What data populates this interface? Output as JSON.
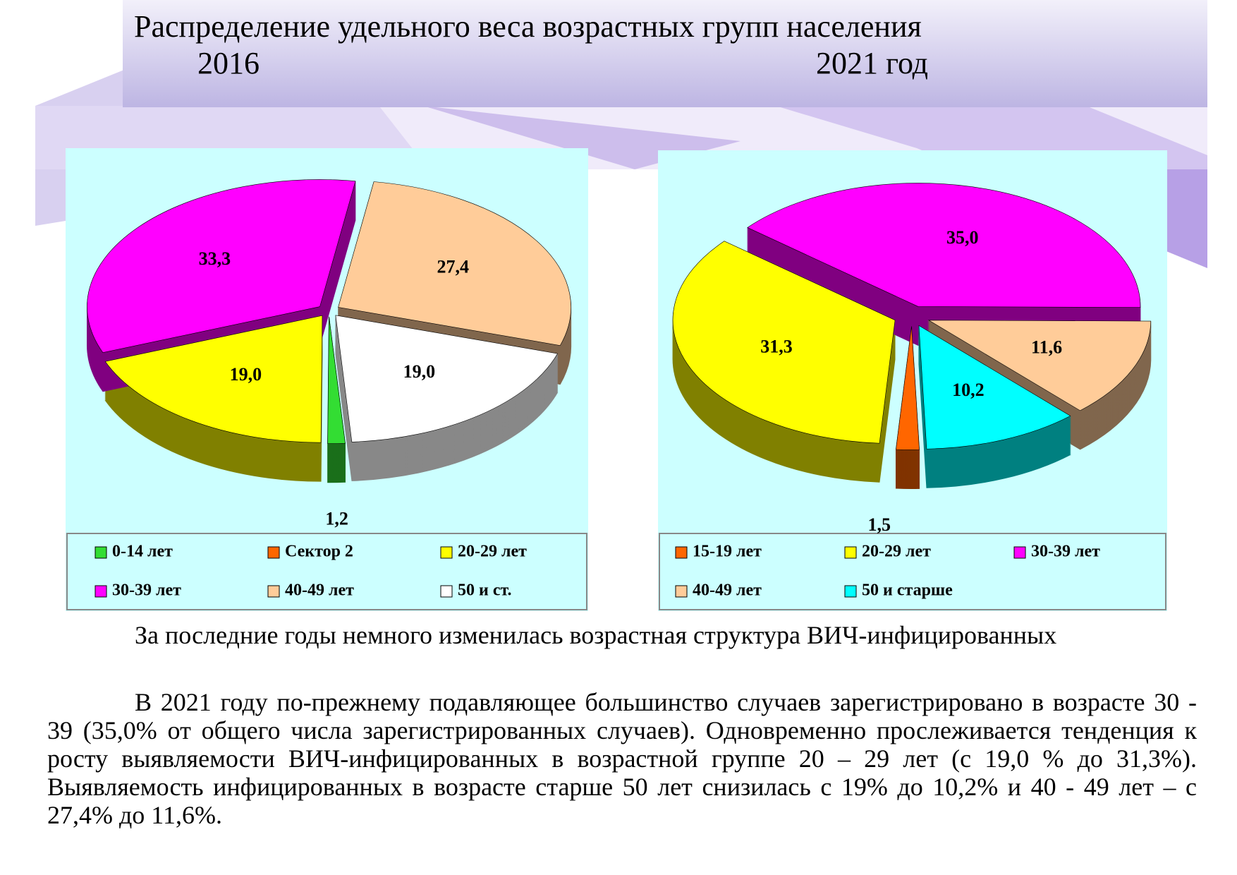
{
  "header": {
    "title": "Распределение удельного веса возрастных групп населения",
    "year_left": "2016",
    "year_right": "2021 год"
  },
  "chart_data": [
    {
      "type": "pie",
      "categories": [
        "0-14 лет",
        "Сектор 2",
        "20-29 лет",
        "30-39 лет",
        "40-49 лет",
        "50 и ст."
      ],
      "values": [
        1.2,
        0,
        19.0,
        33.3,
        27.4,
        19.0
      ],
      "value_labels": [
        "1,2",
        null,
        "19,0",
        "33,3",
        "27,4",
        "19,0"
      ],
      "colors": [
        "#33dd33",
        "#ff6600",
        "#ffff00",
        "#ff00ff",
        "#ffcc99",
        "#ffffff"
      ]
    },
    {
      "type": "pie",
      "categories": [
        "15-19 лет",
        "20-29 лет",
        "30-39 лет",
        "40-49 лет",
        "50 и старше"
      ],
      "values": [
        1.5,
        31.3,
        35.0,
        11.6,
        10.2
      ],
      "value_labels": [
        "1,5",
        "31,3",
        "35,0",
        "11,6",
        "10,2"
      ],
      "colors": [
        "#ff6600",
        "#ffff00",
        "#ff00ff",
        "#ffcc99",
        "#00ffff"
      ]
    }
  ],
  "paragraphs": [
    "За последние  годы немного изменилась возрастная структура ВИЧ-инфицированных",
    "В 2021 году по-прежнему подавляющее большинство случаев зарегистрировано в возрасте 30 - 39 (35,0% от общего числа зарегистрированных случаев). Одновременно прослеживается тенденция к росту выявляемости  ВИЧ-инфицированных в возрастной группе 20 – 29 лет (с 19,0 % до 31,3%). Выявляемость инфицированных в возрасте старше 50 лет снизилась с 19% до 10,2% и 40 - 49 лет – с 27,4% до 11,6%."
  ]
}
